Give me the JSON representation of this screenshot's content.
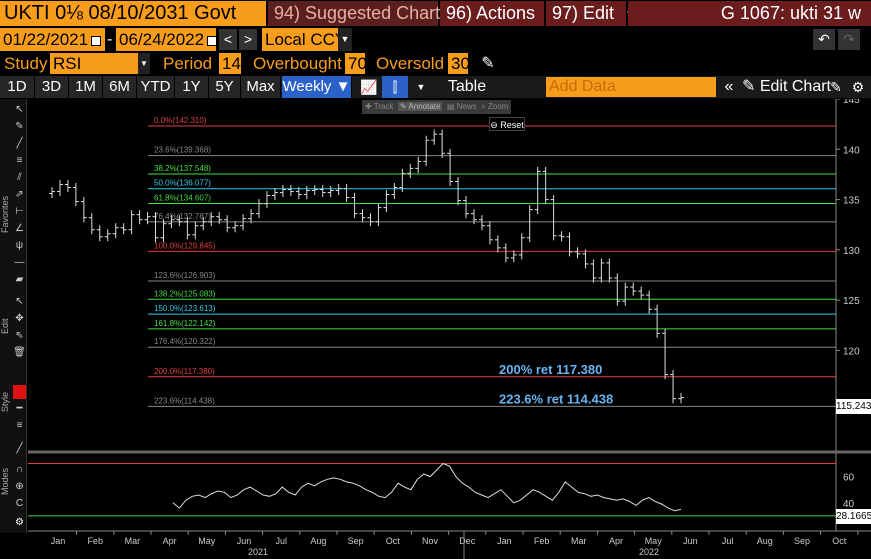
{
  "header": {
    "security": "UKTI 0⅛  08/10/2031 Govt",
    "suggested_num": "94)",
    "suggested_label": "Suggested Charts",
    "actions_num": "96)",
    "actions_label": "Actions",
    "edit_num": "97)",
    "edit_label": "Edit",
    "ticker": "G 1067: ukti 31 w"
  },
  "range": {
    "start": "01/22/2021",
    "sep": "-",
    "end": "06/24/2022",
    "prev": "<",
    "next": ">",
    "currency": "Local CCY"
  },
  "study": {
    "study_label": "Study",
    "study_value": "RSI",
    "period_label": "Period",
    "period_value": "14",
    "overbought_label": "Overbought",
    "overbought_value": "70",
    "oversold_label": "Oversold",
    "oversold_value": "30"
  },
  "periods": [
    "1D",
    "3D",
    "1M",
    "6M",
    "YTD",
    "1Y",
    "5Y",
    "Max"
  ],
  "frequency": "Weekly",
  "toolbar": {
    "table_label": "Table",
    "add_data_placeholder": "Add Data",
    "edit_chart": "Edit Chart",
    "favorites": "Favorites",
    "edit": "Edit",
    "style": "Style",
    "modes": "Modes"
  },
  "chart_tools": {
    "track": "Track",
    "annotate": "Annotate",
    "news": "News",
    "zoom": "Zoom",
    "reset": "Reset"
  },
  "chart_data": {
    "type": "candlestick",
    "y_axis_ticks": [
      "145",
      "140",
      "135",
      "130",
      "125",
      "120"
    ],
    "ylim": [
      110,
      145
    ],
    "last_price": "115.243",
    "x_months": [
      "Jan",
      "Feb",
      "Mar",
      "Apr",
      "May",
      "Jun",
      "Jul",
      "Aug",
      "Sep",
      "Oct",
      "Nov",
      "Dec",
      "Jan",
      "Feb",
      "Mar",
      "Apr",
      "May",
      "Jun",
      "Jul",
      "Aug",
      "Sep",
      "Oct"
    ],
    "x_years": [
      "2021",
      "2022"
    ],
    "fib_levels": [
      {
        "label": "0.0%(142.310)",
        "value": 142.31,
        "color": "#e04040"
      },
      {
        "label": "23.6%(139.368)",
        "value": 139.368,
        "color": "#888888"
      },
      {
        "label": "38.2%(137.548)",
        "value": 137.548,
        "color": "#44dd44"
      },
      {
        "label": "50.0%(136.077)",
        "value": 136.077,
        "color": "#33ccee"
      },
      {
        "label": "61.8%(134.607)",
        "value": 134.607,
        "color": "#44dd44"
      },
      {
        "label": "76.4%(132.787)",
        "value": 132.787,
        "color": "#888888"
      },
      {
        "label": "100.0%(129.845)",
        "value": 129.845,
        "color": "#e04040"
      },
      {
        "label": "123.6%(126.903)",
        "value": 126.903,
        "color": "#888888"
      },
      {
        "label": "138.2%(125.083)",
        "value": 125.083,
        "color": "#44dd44"
      },
      {
        "label": "150.0%(123.613)",
        "value": 123.613,
        "color": "#33ccee"
      },
      {
        "label": "161.8%(122.142)",
        "value": 122.142,
        "color": "#44dd44"
      },
      {
        "label": "176.4%(120.322)",
        "value": 120.322,
        "color": "#888888"
      },
      {
        "label": "200.0%(117.380)",
        "value": 117.38,
        "color": "#e04040"
      },
      {
        "label": "223.6%(114.438)",
        "value": 114.438,
        "color": "#888888"
      }
    ],
    "annotations": [
      {
        "text": "200% ret 117.380",
        "value": 117.38
      },
      {
        "text": "223.6% ret 114.438",
        "value": 114.438
      }
    ],
    "closes": [
      135.8,
      136.5,
      136.2,
      134.8,
      133.2,
      132.0,
      131.3,
      131.6,
      132.2,
      132.0,
      133.5,
      133.0,
      133.3,
      131.2,
      132.6,
      133.0,
      132.8,
      131.5,
      132.4,
      132.8,
      133.3,
      133.0,
      132.2,
      132.4,
      133.1,
      133.6,
      134.6,
      135.4,
      135.7,
      136.0,
      135.8,
      135.5,
      135.9,
      136.0,
      135.7,
      135.9,
      136.1,
      135.2,
      133.6,
      133.2,
      132.8,
      134.2,
      135.5,
      136.2,
      137.6,
      138.1,
      138.8,
      140.9,
      141.5,
      139.6,
      136.8,
      134.9,
      133.6,
      133.0,
      132.4,
      131.0,
      130.2,
      129.2,
      129.5,
      131.2,
      134.0,
      137.8,
      135.0,
      131.4,
      131.3,
      129.8,
      129.6,
      128.6,
      127.2,
      128.7,
      127.2,
      124.9,
      126.3,
      125.9,
      125.5,
      124.1,
      121.7,
      117.6,
      115.2,
      115.3
    ],
    "rsi": {
      "yticks": [
        "60",
        "40"
      ],
      "ylim": [
        20,
        75
      ],
      "overbought": 70,
      "oversold": 30,
      "last": "28.1665",
      "values": [
        40,
        36,
        42,
        45,
        46,
        44,
        47,
        49,
        48,
        44,
        46,
        50,
        52,
        49,
        46,
        45,
        47,
        52,
        48,
        46,
        52,
        55,
        53,
        56,
        58,
        59,
        58,
        56,
        55,
        53,
        50,
        48,
        45,
        44,
        48,
        55,
        52,
        50,
        58,
        62,
        60,
        65,
        70,
        68,
        60,
        55,
        52,
        48,
        46,
        44,
        47,
        50,
        45,
        40,
        42,
        46,
        50,
        48,
        45,
        42,
        48,
        56,
        52,
        48,
        47,
        45,
        46,
        44,
        43,
        42,
        43,
        41,
        38,
        42,
        44,
        41,
        39,
        36,
        34,
        35
      ]
    }
  }
}
